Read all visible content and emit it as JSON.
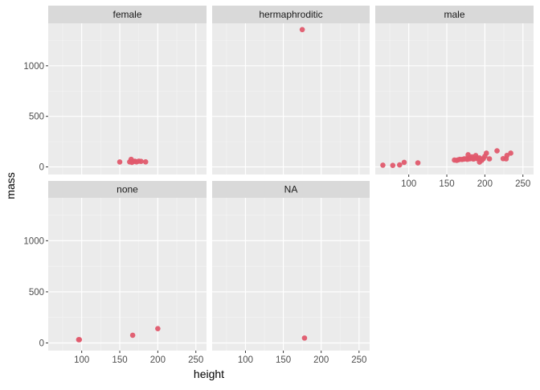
{
  "chart_data": {
    "type": "scatter",
    "xlabel": "height",
    "ylabel": "mass",
    "xlim": [
      56,
      264
    ],
    "ylim": [
      -75,
      1420
    ],
    "x_ticks": [
      100,
      150,
      200,
      250
    ],
    "y_ticks": [
      0,
      500,
      1000
    ],
    "point_color": "#E05A6D",
    "panel_bg": "#EBEBEB",
    "strip_bg": "#D9D9D9",
    "grid": true,
    "facets": [
      {
        "label": "female",
        "points": [
          {
            "x": 150,
            "y": 49
          },
          {
            "x": 163,
            "y": 50
          },
          {
            "x": 165,
            "y": 75
          },
          {
            "x": 166,
            "y": 45
          },
          {
            "x": 168,
            "y": 55
          },
          {
            "x": 170,
            "y": 56
          },
          {
            "x": 172,
            "y": 50
          },
          {
            "x": 175,
            "y": 57
          },
          {
            "x": 178,
            "y": 55
          },
          {
            "x": 184,
            "y": 50
          }
        ]
      },
      {
        "label": "hermaphroditic",
        "points": [
          {
            "x": 175,
            "y": 1358
          }
        ]
      },
      {
        "label": "male",
        "points": [
          {
            "x": 66,
            "y": 17
          },
          {
            "x": 79,
            "y": 15
          },
          {
            "x": 88,
            "y": 20
          },
          {
            "x": 94,
            "y": 45
          },
          {
            "x": 112,
            "y": 40
          },
          {
            "x": 160,
            "y": 68
          },
          {
            "x": 163,
            "y": 65
          },
          {
            "x": 165,
            "y": 70
          },
          {
            "x": 167,
            "y": 75
          },
          {
            "x": 170,
            "y": 74
          },
          {
            "x": 172,
            "y": 77
          },
          {
            "x": 173,
            "y": 80
          },
          {
            "x": 175,
            "y": 80
          },
          {
            "x": 177,
            "y": 75
          },
          {
            "x": 178,
            "y": 120
          },
          {
            "x": 180,
            "y": 80
          },
          {
            "x": 180,
            "y": 90
          },
          {
            "x": 182,
            "y": 85
          },
          {
            "x": 183,
            "y": 84
          },
          {
            "x": 183,
            "y": 100
          },
          {
            "x": 185,
            "y": 78
          },
          {
            "x": 188,
            "y": 84
          },
          {
            "x": 188,
            "y": 112
          },
          {
            "x": 190,
            "y": 90
          },
          {
            "x": 191,
            "y": 80
          },
          {
            "x": 193,
            "y": 48
          },
          {
            "x": 193,
            "y": 89
          },
          {
            "x": 196,
            "y": 66
          },
          {
            "x": 198,
            "y": 82
          },
          {
            "x": 200,
            "y": 105
          },
          {
            "x": 202,
            "y": 136
          },
          {
            "x": 206,
            "y": 80
          },
          {
            "x": 216,
            "y": 159
          },
          {
            "x": 224,
            "y": 82
          },
          {
            "x": 228,
            "y": 80
          },
          {
            "x": 229,
            "y": 113
          },
          {
            "x": 234,
            "y": 136
          }
        ]
      },
      {
        "label": "none",
        "points": [
          {
            "x": 96,
            "y": 32
          },
          {
            "x": 97,
            "y": 32
          },
          {
            "x": 167,
            "y": 75
          },
          {
            "x": 200,
            "y": 140
          }
        ]
      },
      {
        "label": "NA",
        "points": [
          {
            "x": 178,
            "y": 48
          }
        ]
      }
    ]
  }
}
